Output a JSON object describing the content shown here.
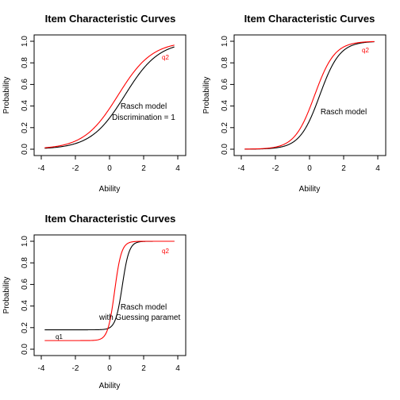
{
  "colors": {
    "black": "#000000",
    "red": "#ff0000"
  },
  "chart_data": [
    {
      "type": "line",
      "title": "Item Characteristic Curves",
      "xlabel": "Ability",
      "ylabel": "Probability",
      "xlim": [
        -4,
        4
      ],
      "ylim": [
        0,
        1
      ],
      "xticks": [
        "-4",
        "-2",
        "0",
        "2",
        "4"
      ],
      "yticks": [
        "0.0",
        "0.2",
        "0.4",
        "0.6",
        "0.8",
        "1.0"
      ],
      "grid": false,
      "annotations": [
        "Rasch model",
        "Discrimination = 1"
      ],
      "series": [
        {
          "name": "",
          "color": "#000000",
          "a": 1.0,
          "b": 0.9,
          "c": 0.0,
          "x": [
            -3.8,
            -3,
            -2,
            -1,
            0,
            0.5,
            1,
            1.5,
            2,
            3,
            3.8
          ],
          "values": [
            0.01,
            0.02,
            0.05,
            0.13,
            0.29,
            0.4,
            0.52,
            0.65,
            0.75,
            0.89,
            0.95
          ]
        },
        {
          "name": "q2",
          "color": "#ff0000",
          "a": 1.0,
          "b": 0.5,
          "c": 0.0,
          "x": [
            -3.8,
            -3,
            -2,
            -1,
            0,
            0.5,
            1,
            1.5,
            2,
            3,
            3.8
          ],
          "values": [
            0.01,
            0.03,
            0.08,
            0.18,
            0.38,
            0.5,
            0.62,
            0.73,
            0.82,
            0.92,
            0.96
          ]
        }
      ]
    },
    {
      "type": "line",
      "title": "Item Characteristic Curves",
      "xlabel": "Ability",
      "ylabel": "Probability",
      "xlim": [
        -4,
        4
      ],
      "ylim": [
        0,
        1
      ],
      "xticks": [
        "-4",
        "-2",
        "0",
        "2",
        "4"
      ],
      "yticks": [
        "0.0",
        "0.2",
        "0.4",
        "0.6",
        "0.8",
        "1.0"
      ],
      "grid": false,
      "annotations": [
        "Rasch model"
      ],
      "series": [
        {
          "name": "",
          "color": "#000000",
          "a": 1.7,
          "b": 0.6,
          "c": 0.0,
          "x": [
            -3.8,
            -2,
            -1,
            0,
            0.3,
            0.6,
            1,
            1.5,
            2,
            3,
            3.8
          ],
          "values": [
            0.0,
            0.01,
            0.06,
            0.27,
            0.38,
            0.5,
            0.67,
            0.82,
            0.92,
            0.98,
            1.0
          ]
        },
        {
          "name": "q2",
          "color": "#ff0000",
          "a": 1.7,
          "b": 0.3,
          "c": 0.0,
          "x": [
            -3.8,
            -2,
            -1,
            0,
            0.3,
            0.6,
            1,
            1.5,
            2,
            3,
            3.8
          ],
          "values": [
            0.0,
            0.02,
            0.1,
            0.38,
            0.5,
            0.62,
            0.77,
            0.88,
            0.95,
            0.99,
            1.0
          ]
        }
      ]
    },
    {
      "type": "line",
      "title": "Item Characteristic Curves",
      "xlabel": "Ability",
      "ylabel": "Probability",
      "xlim": [
        -4,
        4
      ],
      "ylim": [
        0,
        1
      ],
      "xticks": [
        "-4",
        "-2",
        "0",
        "2",
        "4"
      ],
      "yticks": [
        "0.0",
        "0.2",
        "0.4",
        "0.6",
        "0.8",
        "1.0"
      ],
      "grid": false,
      "annotations": [
        "Rasch model",
        "with Guessing paramet"
      ],
      "series": [
        {
          "name": "q1",
          "color": "#000000",
          "a": 5.0,
          "b": 0.75,
          "c": 0.18,
          "x": [
            -3.8,
            0,
            0.5,
            0.75,
            1,
            1.5,
            3.8
          ],
          "values": [
            0.18,
            0.2,
            0.41,
            0.59,
            0.77,
            0.98,
            1.0
          ]
        },
        {
          "name": "q2",
          "color": "#ff0000",
          "a": 5.0,
          "b": 0.3,
          "c": 0.08,
          "x": [
            -3.8,
            -0.3,
            0,
            0.3,
            0.6,
            1,
            3.8
          ],
          "values": [
            0.08,
            0.12,
            0.26,
            0.54,
            0.82,
            0.97,
            1.0
          ]
        }
      ]
    }
  ]
}
